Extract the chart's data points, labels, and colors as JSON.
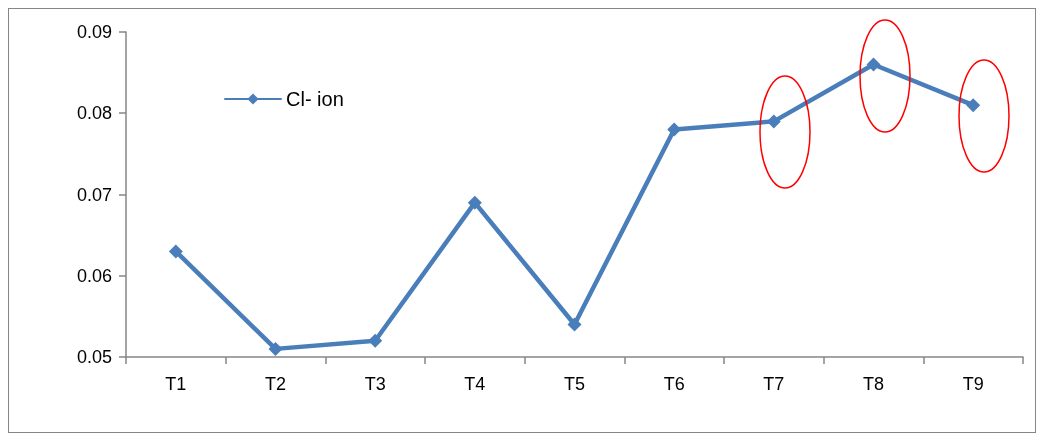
{
  "chart_data": {
    "type": "line",
    "categories": [
      "T1",
      "T2",
      "T3",
      "T4",
      "T5",
      "T6",
      "T7",
      "T8",
      "T9"
    ],
    "series": [
      {
        "name": "Cl- ion",
        "color": "#4a7ebb",
        "values": [
          0.063,
          0.051,
          0.052,
          0.069,
          0.054,
          0.078,
          0.079,
          0.086,
          0.081
        ]
      }
    ],
    "ylim": [
      0.05,
      0.09
    ],
    "yticks": [
      0.05,
      0.06,
      0.07,
      0.08,
      0.09
    ],
    "grid": false,
    "legend": "top left",
    "marker": "diamond",
    "line_style": "solid"
  }
}
